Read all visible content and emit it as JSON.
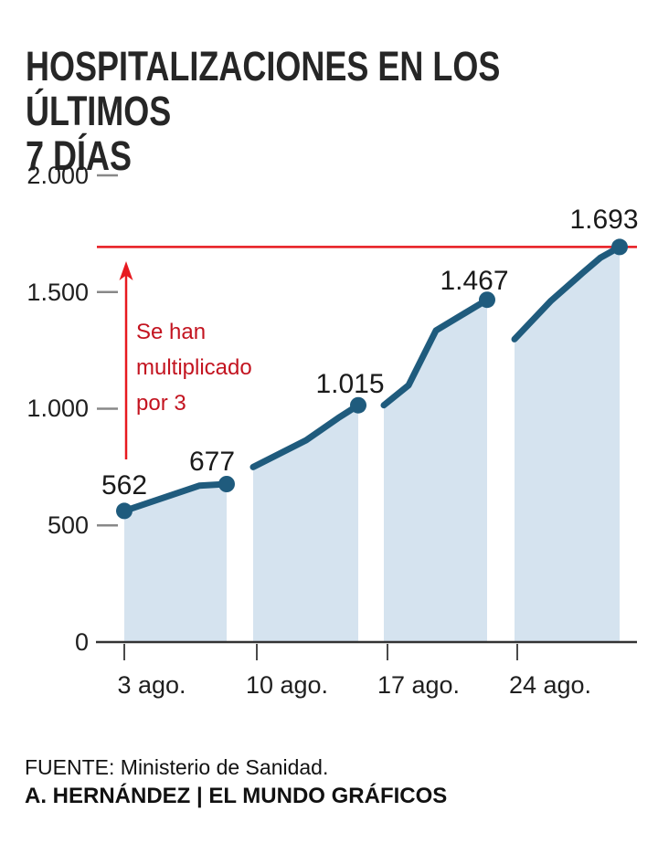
{
  "header": {
    "title_line1": "HOSPITALIZACIONES EN LOS ÚLTIMOS",
    "title_line2": "7 DÍAS"
  },
  "annotation": {
    "text": "Se han\nmultiplicado\npor 3"
  },
  "footer": {
    "source": "FUENTE: Ministerio de Sanidad.",
    "credit": "A. HERNÁNDEZ | EL MUNDO GRÁFICOS"
  },
  "colors": {
    "line": "#1f5b7d",
    "fill": "#d5e3ef",
    "red": "#e7191f",
    "red_text": "#c31420",
    "baseline": "#333333",
    "x_tick": "#4a4a4a",
    "y_tick": "#888888"
  },
  "chart_data": {
    "type": "area",
    "title": "HOSPITALIZACIONES EN LOS ÚLTIMOS 7 DÍAS",
    "xlabel": "",
    "ylabel": "",
    "ylim": [
      0,
      2000
    ],
    "grid": false,
    "legend": "none",
    "x_tick_labels": [
      "3 ago.",
      "10 ago.",
      "17 ago.",
      "24 ago."
    ],
    "y_tick_labels": [
      "2.000",
      "1.500",
      "1.000",
      "500",
      "0"
    ],
    "labeled_points": [
      {
        "label": "562",
        "value": 562
      },
      {
        "label": "677",
        "value": 677
      },
      {
        "label": "1.015",
        "value": 1015
      },
      {
        "label": "1.467",
        "value": 1467
      },
      {
        "label": "1.693",
        "value": 1693
      }
    ],
    "reference_line_value": 1693,
    "annotation_text": "Se han multiplicado por 3",
    "segments_values": [
      [
        562,
        670,
        677
      ],
      [
        750,
        865,
        960,
        1015
      ],
      [
        1015,
        1100,
        1335,
        1467
      ],
      [
        1298,
        1463,
        1580,
        1647,
        1693
      ]
    ],
    "note": "area chart drawn in 4 weekly segments separated by white gaps"
  }
}
